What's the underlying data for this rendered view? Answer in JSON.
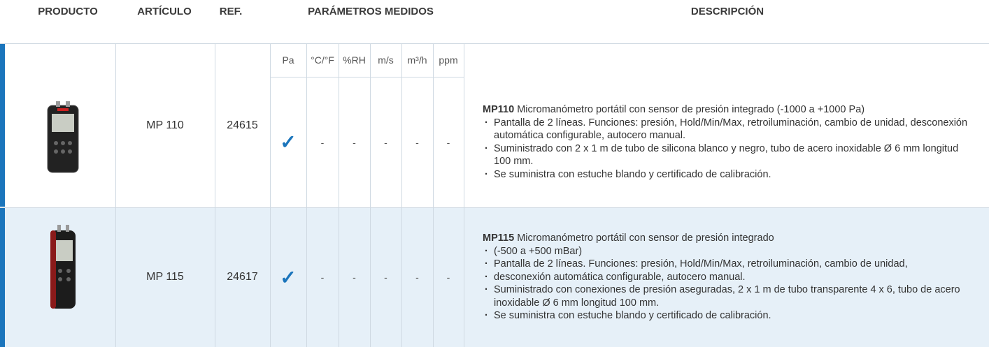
{
  "header": {
    "columns": [
      "PRODUCTO",
      "ARTÍCULO",
      "REF.",
      "PARÁMETROS MEDIDOS",
      "DESCRIPCIÓN"
    ]
  },
  "parameters": [
    "Pa",
    "°C/°F",
    "%RH",
    "m/s",
    "m³/h",
    "ppm"
  ],
  "rows": [
    {
      "article": "MP 110",
      "ref": "24615",
      "params": [
        "✓",
        "-",
        "-",
        "-",
        "-",
        "-"
      ],
      "description": {
        "model": "MP110",
        "summary": "Micromanómetro portátil con sensor de presión integrado (-1000 a +1000 Pa)",
        "bullets": [
          "Pantalla de 2 líneas. Funciones: presión, Hold/Min/Max, retroiluminación, cambio de unidad, desconexión automática configurable, autocero manual.",
          "Suministrado con 2 x 1 m de tubo de silicona blanco y negro, tubo de acero inoxidable Ø 6 mm longitud 100 mm.",
          "Se suministra con estuche blando y certificado de calibración."
        ]
      }
    },
    {
      "article": "MP 115",
      "ref": "24617",
      "params": [
        "✓",
        "-",
        "-",
        "-",
        "-",
        "-"
      ],
      "description": {
        "model": "MP115",
        "summary": "Micromanómetro portátil con sensor de presión integrado",
        "bullets": [
          "(-500 a +500 mBar)",
          "Pantalla de 2 líneas. Funciones: presión, Hold/Min/Max, retroiluminación, cambio de unidad,",
          "desconexión automática configurable, autocero manual.",
          "Suministrado con conexiones de presión aseguradas, 2 x 1 m de tubo transparente 4 x 6, tubo de acero inoxidable Ø 6 mm longitud 100 mm.",
          "Se suministra con estuche blando y certificado de calibración."
        ]
      }
    }
  ]
}
